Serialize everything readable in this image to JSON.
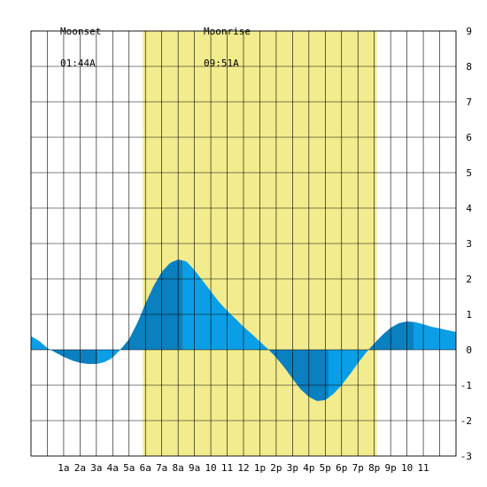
{
  "moon": {
    "moonset": {
      "label": "Moonset",
      "time": "01:44A"
    },
    "moonrise": {
      "label": "Moonrise",
      "time": "09:51A"
    }
  },
  "colors": {
    "background": "#ffffff",
    "daylight": "#f2ec8e",
    "grid": "#000000",
    "tide_light": "#0a9ee6",
    "tide_dark": "#0a80c0",
    "zero_line": "#000000"
  },
  "chart_data": {
    "type": "area",
    "title": "",
    "xlabel": "",
    "ylabel": "",
    "x_unit": "hour of day",
    "xlim": [
      -1,
      25
    ],
    "ylim": [
      -3,
      9
    ],
    "y_ticks": [
      -3,
      -2,
      -1,
      0,
      1,
      2,
      3,
      4,
      5,
      6,
      7,
      8,
      9
    ],
    "x_ticks": [
      {
        "hour": 1,
        "label": "1a"
      },
      {
        "hour": 2,
        "label": "2a"
      },
      {
        "hour": 3,
        "label": "3a"
      },
      {
        "hour": 4,
        "label": "4a"
      },
      {
        "hour": 5,
        "label": "5a"
      },
      {
        "hour": 6,
        "label": "6a"
      },
      {
        "hour": 7,
        "label": "7a"
      },
      {
        "hour": 8,
        "label": "8a"
      },
      {
        "hour": 9,
        "label": "9a"
      },
      {
        "hour": 10,
        "label": "10"
      },
      {
        "hour": 11,
        "label": "11"
      },
      {
        "hour": 12,
        "label": "12"
      },
      {
        "hour": 13,
        "label": "1p"
      },
      {
        "hour": 14,
        "label": "2p"
      },
      {
        "hour": 15,
        "label": "3p"
      },
      {
        "hour": 16,
        "label": "4p"
      },
      {
        "hour": 17,
        "label": "5p"
      },
      {
        "hour": 18,
        "label": "6p"
      },
      {
        "hour": 19,
        "label": "7p"
      },
      {
        "hour": 20,
        "label": "8p"
      },
      {
        "hour": 21,
        "label": "9p"
      },
      {
        "hour": 22,
        "label": "10"
      },
      {
        "hour": 23,
        "label": "11"
      }
    ],
    "grid": true,
    "daylight": {
      "start": 5.85,
      "end": 20.15
    },
    "tide_extremes": [
      {
        "type": "low",
        "hour": 3.1,
        "height": -0.4
      },
      {
        "type": "high",
        "hour": 8.3,
        "height": 2.55
      },
      {
        "type": "low",
        "hour": 17.2,
        "height": -1.45
      },
      {
        "type": "high",
        "hour": 22.4,
        "height": 0.8
      }
    ],
    "series": [
      {
        "x": [
          -1.0,
          -0.5,
          0.0,
          0.5,
          1.0,
          1.5,
          2.0,
          2.5,
          3.0,
          3.5,
          4.0,
          4.5,
          5.0,
          5.5,
          6.0,
          6.5,
          7.0,
          7.5,
          8.0,
          8.5,
          9.0,
          9.5,
          10.0,
          10.5,
          11.0,
          11.5,
          12.0,
          12.5,
          13.0,
          13.5,
          14.0,
          14.5,
          15.0,
          15.5,
          16.0,
          16.5,
          17.0,
          17.5,
          18.0,
          18.5,
          19.0,
          19.5,
          20.0,
          20.5,
          21.0,
          21.5,
          22.0,
          22.5,
          23.0,
          23.5,
          24.0,
          24.5,
          25.0
        ],
        "values": [
          0.38,
          0.25,
          0.05,
          -0.08,
          -0.2,
          -0.3,
          -0.37,
          -0.4,
          -0.4,
          -0.35,
          -0.22,
          0.02,
          0.3,
          0.75,
          1.3,
          1.8,
          2.2,
          2.45,
          2.55,
          2.5,
          2.25,
          1.95,
          1.65,
          1.35,
          1.1,
          0.88,
          0.65,
          0.45,
          0.23,
          0.02,
          -0.22,
          -0.5,
          -0.82,
          -1.12,
          -1.33,
          -1.45,
          -1.42,
          -1.25,
          -1.0,
          -0.7,
          -0.38,
          -0.08,
          0.18,
          0.42,
          0.62,
          0.75,
          0.8,
          0.78,
          0.72,
          0.65,
          0.6,
          0.55,
          0.5
        ]
      }
    ]
  }
}
